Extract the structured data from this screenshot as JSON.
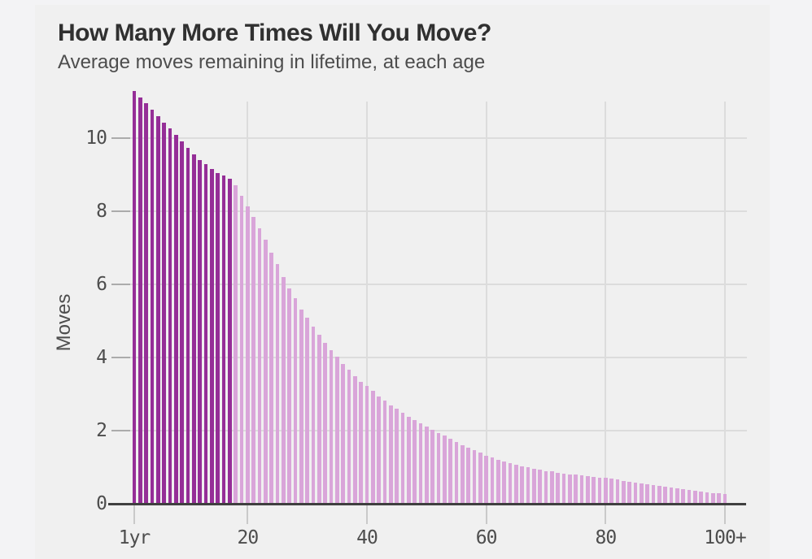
{
  "page": {
    "background": "#f3f3f5",
    "card_background": "#f0f0f0"
  },
  "chart_data": {
    "type": "bar",
    "title": "How Many More Times Will You Move?",
    "subtitle": "Average moves remaining in lifetime, at each age",
    "xlabel": "",
    "ylabel": "Moves",
    "x_tick_labels": [
      "1yr",
      "20",
      "40",
      "60",
      "80",
      "100+"
    ],
    "x_tick_ages": [
      1,
      20,
      40,
      60,
      80,
      100
    ],
    "x_gridline_ages": [
      20,
      40,
      60,
      80,
      100
    ],
    "y_ticks": [
      0,
      2,
      4,
      6,
      8,
      10
    ],
    "ylim": [
      0,
      11.5
    ],
    "age_min": 1,
    "age_max": 100,
    "dark_through_age": 17,
    "grid": "on",
    "legend": "none",
    "values": [
      11.3,
      11.12,
      10.95,
      10.78,
      10.6,
      10.43,
      10.26,
      10.08,
      9.91,
      9.74,
      9.56,
      9.4,
      9.28,
      9.16,
      9.05,
      8.97,
      8.9,
      8.72,
      8.42,
      8.13,
      7.84,
      7.53,
      7.22,
      6.87,
      6.55,
      6.2,
      5.88,
      5.62,
      5.32,
      5.08,
      4.84,
      4.62,
      4.41,
      4.2,
      4.03,
      3.83,
      3.66,
      3.49,
      3.34,
      3.22,
      3.08,
      2.94,
      2.82,
      2.7,
      2.59,
      2.48,
      2.38,
      2.29,
      2.2,
      2.12,
      2.03,
      1.94,
      1.86,
      1.77,
      1.69,
      1.61,
      1.53,
      1.46,
      1.39,
      1.32,
      1.27,
      1.21,
      1.16,
      1.11,
      1.07,
      1.03,
      0.99,
      0.96,
      0.93,
      0.9,
      0.88,
      0.85,
      0.83,
      0.81,
      0.79,
      0.77,
      0.75,
      0.74,
      0.72,
      0.71,
      0.68,
      0.66,
      0.63,
      0.61,
      0.58,
      0.56,
      0.53,
      0.51,
      0.48,
      0.46,
      0.44,
      0.42,
      0.4,
      0.38,
      0.36,
      0.34,
      0.32,
      0.3,
      0.28,
      0.27
    ],
    "colors": {
      "bar_dark": "#952e97",
      "bar_light": "#d9a5d9",
      "grid": "#dcdcdc",
      "axis": "#3f3f3f",
      "x_tick": "#c9c9c9",
      "y_tick": "#ababab",
      "title_text": "#303030",
      "label_text": "#4d4d4d"
    }
  }
}
